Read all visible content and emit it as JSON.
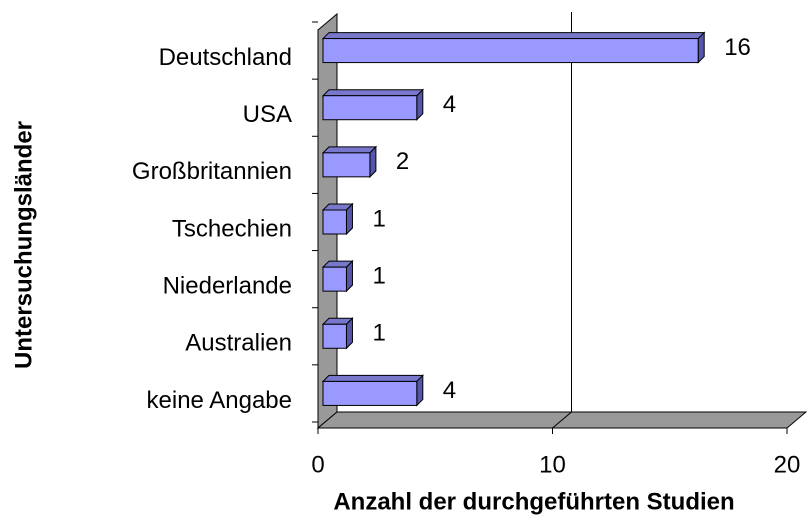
{
  "chart_data": {
    "type": "bar",
    "orientation": "horizontal",
    "categories": [
      "Deutschland",
      "USA",
      "Großbritannien",
      "Tschechien",
      "Niederlande",
      "Australien",
      "keine Angabe"
    ],
    "values": [
      16,
      4,
      2,
      1,
      1,
      1,
      4
    ],
    "color": "#9999ff",
    "xlim": [
      0,
      20
    ],
    "xticks": [
      0,
      10,
      20
    ],
    "grid": true,
    "xlabel": "Anzahl der durchgeführten Studien",
    "ylabel": "Untersuchungsländer"
  }
}
